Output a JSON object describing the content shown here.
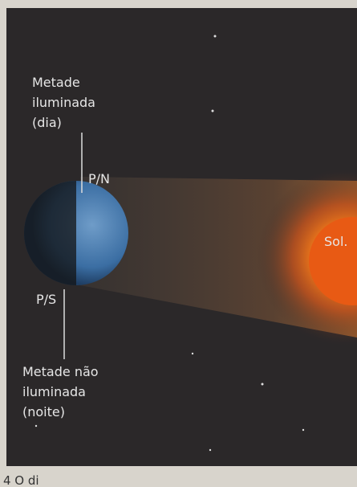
{
  "labels": {
    "lit_half": [
      "Metade",
      "iluminada",
      "(dia)"
    ],
    "north_pole": "P/N",
    "sun": "Sol.",
    "south_pole": "P/S",
    "dark_half": [
      "Metade não",
      "iluminada",
      "(noite)"
    ],
    "caption": "4 O di"
  }
}
